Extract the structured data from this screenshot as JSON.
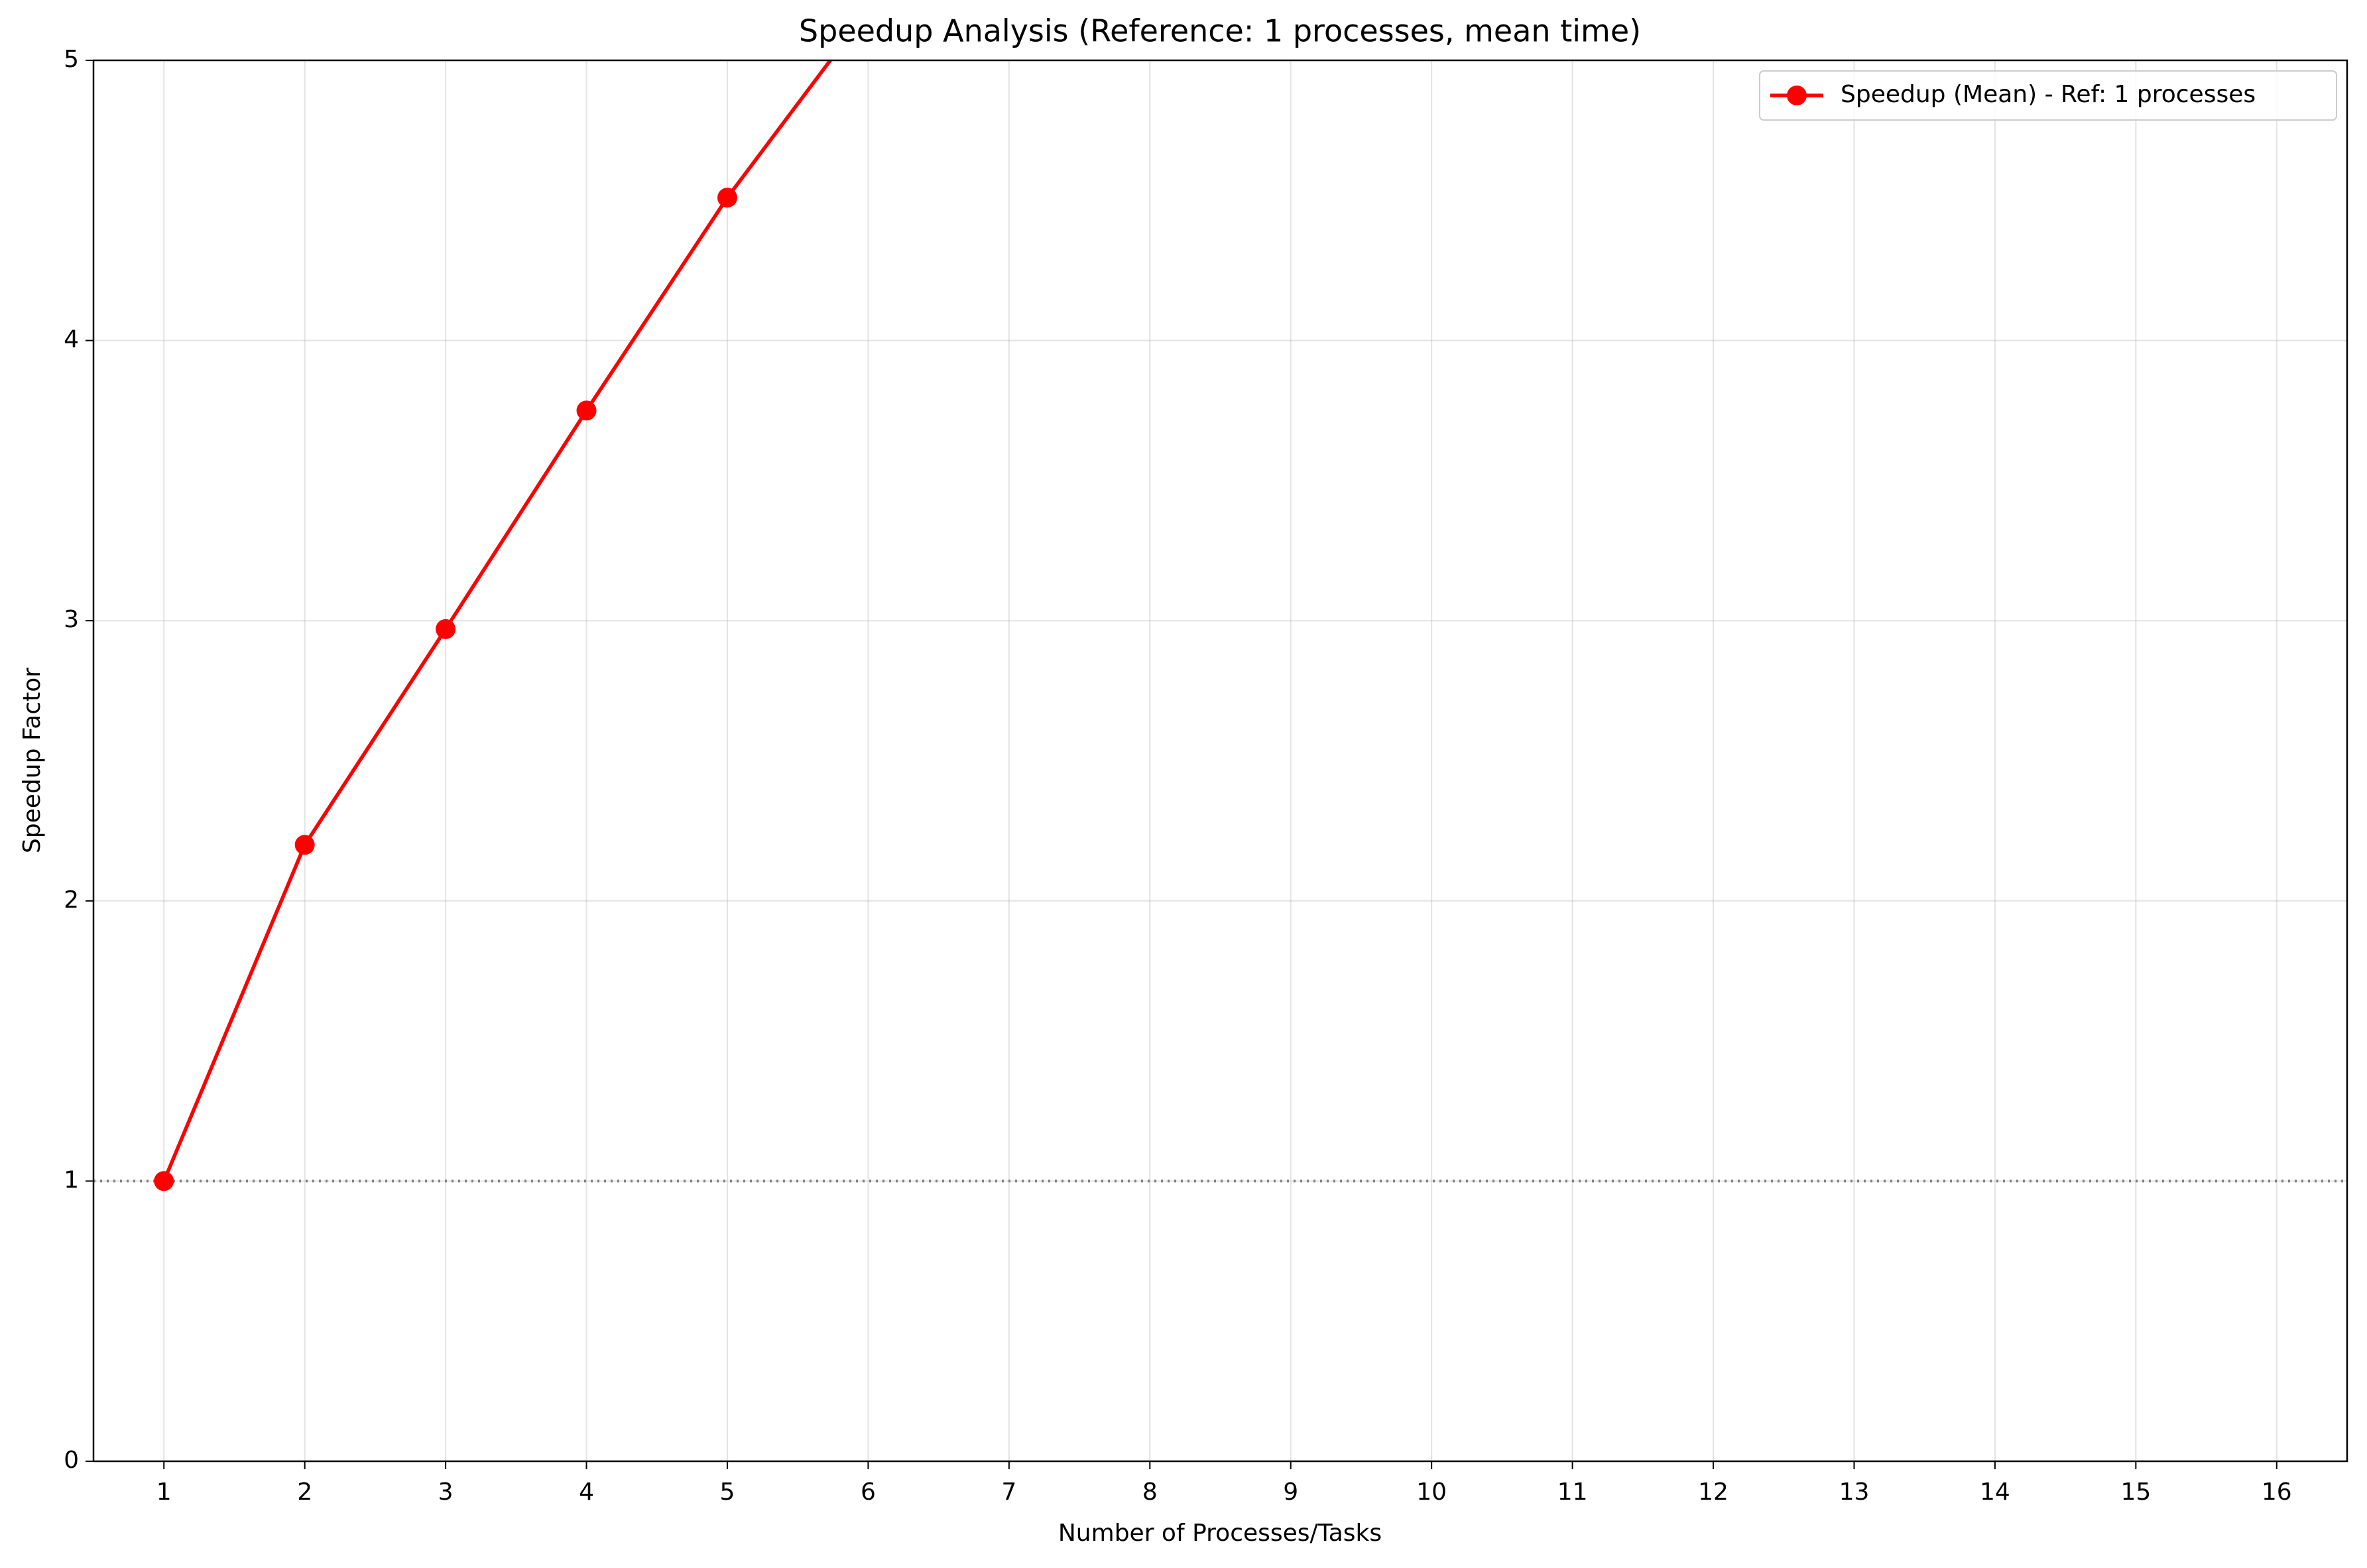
{
  "chart_data": {
    "type": "line",
    "title": "Speedup Analysis (Reference: 1 processes, mean time)",
    "x_label": "Number of Processes/Tasks",
    "y_label": "Speedup Factor",
    "series": [
      {
        "name": "Speedup (Mean) - Ref: 1 processes",
        "color": "#ff0000",
        "x": [
          1,
          2,
          3,
          4,
          5,
          6
        ],
        "values": [
          1.0,
          2.2,
          2.97,
          3.75,
          4.51,
          5.18
        ]
      }
    ],
    "reference_line": {
      "y": 1,
      "color": "#808080",
      "style": "dotted"
    },
    "xlim": [
      0.5,
      16.5
    ],
    "xticks": [
      1,
      2,
      3,
      4,
      5,
      6,
      7,
      8,
      9,
      10,
      11,
      12,
      13,
      14,
      15,
      16
    ],
    "ylim": [
      0,
      5
    ],
    "yticks": [
      0,
      1,
      2,
      3,
      4,
      5
    ],
    "grid": true,
    "legend": "upper right"
  }
}
